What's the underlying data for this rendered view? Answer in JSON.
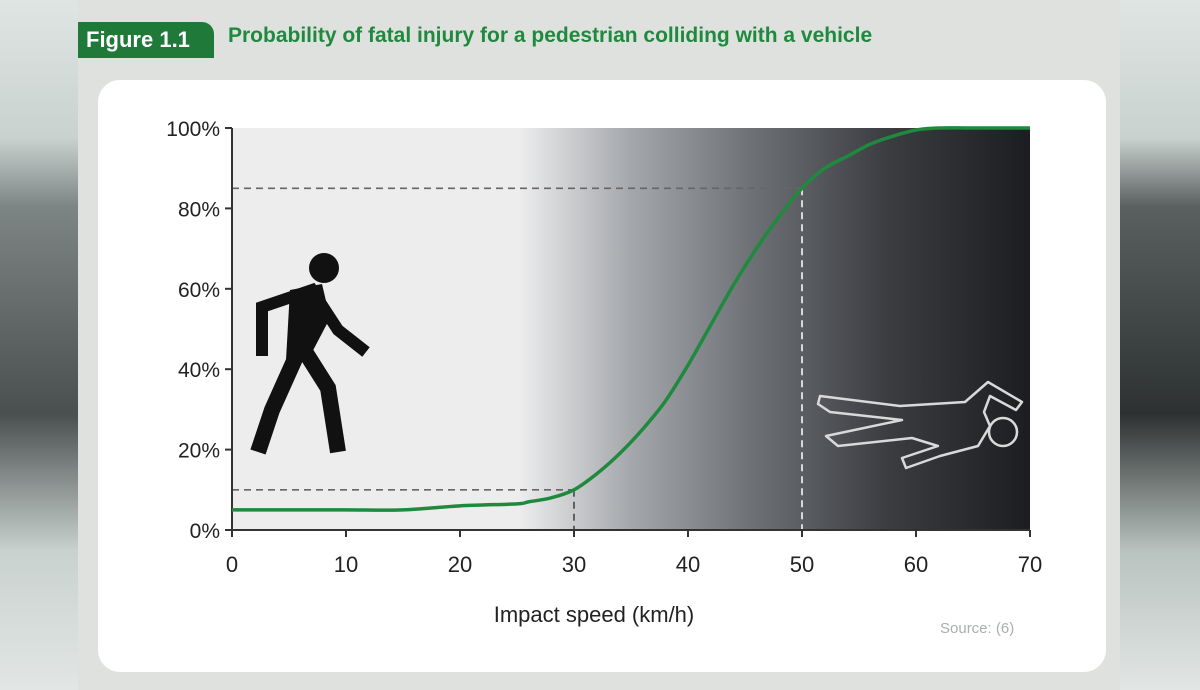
{
  "figure": {
    "tab_label": "Figure 1.1",
    "title": "Probability of fatal injury for a pedestrian colliding with a vehicle",
    "source": "Source: (6)",
    "accent_color": "#1f7a3a",
    "title_color": "#1f8a3e"
  },
  "chart_data": {
    "type": "line",
    "xlabel": "Impact speed (km/h)",
    "ylabel": "",
    "xlim": [
      0,
      70
    ],
    "ylim": [
      0,
      100
    ],
    "x_ticks": [
      0,
      10,
      20,
      30,
      40,
      50,
      60,
      70
    ],
    "y_ticks": [
      0,
      20,
      40,
      60,
      80,
      100
    ],
    "x_tick_labels": [
      "0",
      "10",
      "20",
      "30",
      "40",
      "50",
      "60",
      "70"
    ],
    "y_tick_labels": [
      "0%",
      "20%",
      "40%",
      "60%",
      "80%",
      "100%"
    ],
    "grid": false,
    "series": [
      {
        "color": "#1f8a3e",
        "x": [
          0,
          5,
          10,
          15,
          20,
          25,
          26,
          28,
          30,
          32,
          34,
          36,
          38,
          40,
          42,
          44,
          46,
          48,
          50,
          52,
          54,
          56,
          58,
          60,
          62,
          65,
          70
        ],
        "y": [
          5,
          5,
          5,
          5,
          6,
          6.5,
          7,
          8,
          10,
          14,
          19,
          25,
          32,
          41,
          51,
          61,
          70,
          78,
          85,
          90,
          93,
          96,
          98,
          99.5,
          100,
          100,
          100
        ]
      }
    ],
    "reference_lines": [
      {
        "x": 30,
        "y": 10
      },
      {
        "x": 50,
        "y": 85
      }
    ],
    "icons": [
      "walking-pedestrian-icon",
      "body-outline-icon"
    ]
  }
}
